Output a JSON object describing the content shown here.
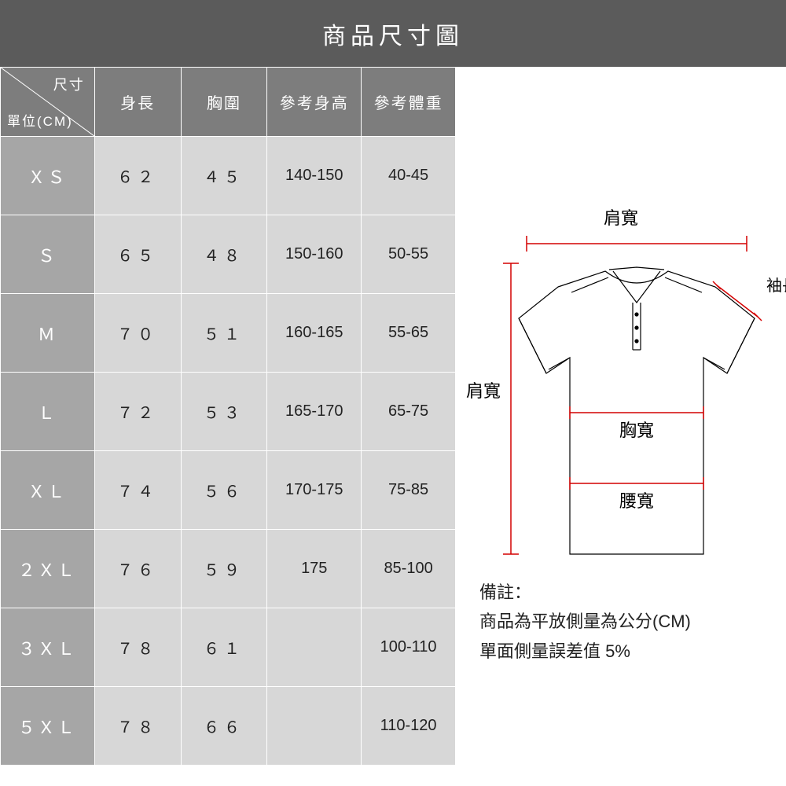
{
  "title": "商品尺寸圖",
  "header": {
    "diag_top": "尺寸",
    "diag_bottom": "單位(CM)",
    "cols": [
      "身長",
      "胸圍",
      "參考身高",
      "參考體重"
    ]
  },
  "rows": [
    {
      "size": "ＸＳ",
      "length": "６２",
      "chest": "４５",
      "ref_h": "140-150",
      "ref_w": "40-45"
    },
    {
      "size": "Ｓ",
      "length": "６５",
      "chest": "４８",
      "ref_h": "150-160",
      "ref_w": "50-55"
    },
    {
      "size": "Ｍ",
      "length": "７０",
      "chest": "５１",
      "ref_h": "160-165",
      "ref_w": "55-65"
    },
    {
      "size": "Ｌ",
      "length": "７２",
      "chest": "５３",
      "ref_h": "165-170",
      "ref_w": "65-75"
    },
    {
      "size": "ＸＬ",
      "length": "７４",
      "chest": "５６",
      "ref_h": "170-175",
      "ref_w": "75-85"
    },
    {
      "size": "２ＸＬ",
      "length": "７６",
      "chest": "５９",
      "ref_h": "175",
      "ref_w": "85-100"
    },
    {
      "size": "３ＸＬ",
      "length": "７８",
      "chest": "６１",
      "ref_h": "",
      "ref_w": "100-110"
    },
    {
      "size": "５ＸＬ",
      "length": "７８",
      "chest": "６６",
      "ref_h": "",
      "ref_w": "110-120"
    }
  ],
  "diagram": {
    "labels": {
      "shoulder_top": "肩寬",
      "shoulder_side": "肩寬",
      "sleeve": "袖長",
      "chest": "胸寬",
      "waist": "腰寬"
    },
    "colors": {
      "shirt_line": "#000000",
      "measure_line": "#d40000",
      "text": "#000000",
      "bg": "#ffffff"
    },
    "stroke_width": 1.2
  },
  "notes": {
    "line1": "備註：",
    "line2": "商品為平放側量為公分(CM)",
    "line3": "單面側量誤差值  5%"
  },
  "table_colors": {
    "title_bg": "#5b5b5b",
    "header_bg": "#7d7d7d",
    "rowhead_bg": "#a6a6a6",
    "cell_bg": "#d7d7d7",
    "border": "#ffffff",
    "text_dark": "#222222",
    "text_light": "#ffffff"
  }
}
